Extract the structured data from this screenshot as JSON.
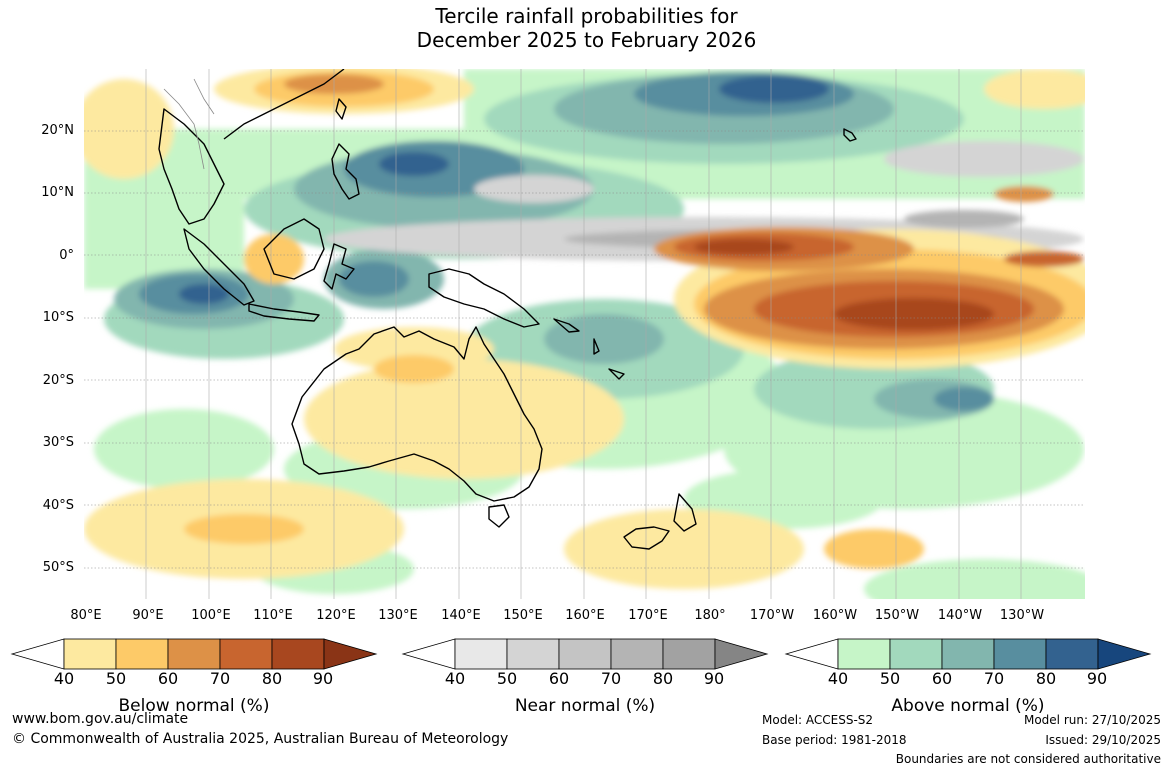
{
  "title_line1": "Tercile rainfall probabilities for",
  "title_line2": "December 2025 to February 2026",
  "lat_labels": [
    "20°N",
    "10°N",
    "0°",
    "10°S",
    "20°S",
    "30°S",
    "40°S",
    "50°S"
  ],
  "lon_labels": [
    "80°E",
    "90°E",
    "100°E",
    "110°E",
    "120°E",
    "130°E",
    "140°E",
    "150°E",
    "160°E",
    "170°E",
    "180°",
    "170°W",
    "160°W",
    "150°W",
    "140°W",
    "130°W"
  ],
  "colorbars": {
    "below": {
      "title": "Below normal (%)",
      "ticks": [
        "40",
        "50",
        "60",
        "70",
        "80",
        "90"
      ],
      "colors": [
        "#ffffff",
        "#fde9a0",
        "#fdca68",
        "#dd9147",
        "#c8652f",
        "#a8471f",
        "#8a3416"
      ]
    },
    "near": {
      "title": "Near normal (%)",
      "ticks": [
        "40",
        "50",
        "60",
        "70",
        "80",
        "90"
      ],
      "colors": [
        "#ffffff",
        "#e8e8e8",
        "#d4d4d4",
        "#c4c4c4",
        "#b4b4b4",
        "#a2a2a2",
        "#858585"
      ]
    },
    "above": {
      "title": "Above normal (%)",
      "ticks": [
        "40",
        "50",
        "60",
        "70",
        "80",
        "90"
      ],
      "colors": [
        "#ffffff",
        "#c6f5c8",
        "#a2d9bd",
        "#82b6ae",
        "#588e9f",
        "#33628f",
        "#17467d"
      ]
    }
  },
  "footer": {
    "website": "www.bom.gov.au/climate",
    "copyright": "© Commonwealth of Australia 2025, Australian Bureau of Meteorology",
    "model": "Model: ACCESS-S2",
    "base_period": "Base period: 1981-2018",
    "model_run": "Model run: 27/10/2025",
    "issued": "Issued: 29/10/2025",
    "disclaimer": "Boundaries are not considered authoritative"
  }
}
